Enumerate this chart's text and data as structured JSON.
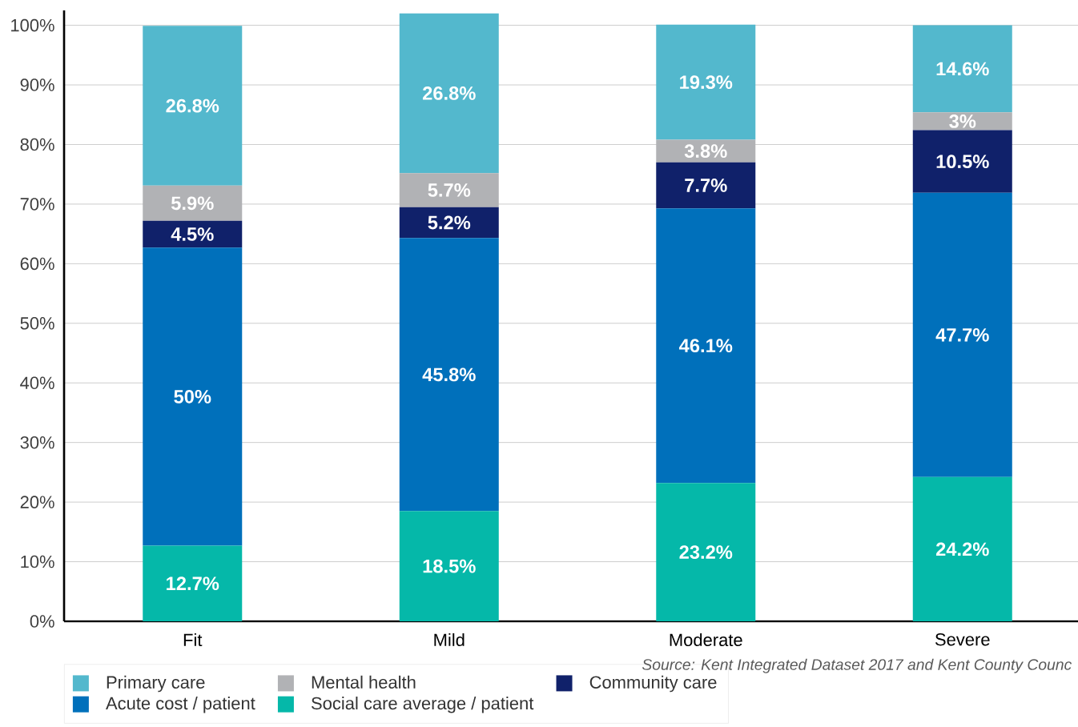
{
  "chart_data": {
    "type": "bar",
    "stacked": true,
    "categories": [
      "Fit",
      "Mild",
      "Moderate",
      "Severe"
    ],
    "series": [
      {
        "name": "Social care average / patient",
        "color": "#05b8a9",
        "values": [
          12.7,
          18.5,
          23.2,
          24.2
        ],
        "value_labels": [
          "12.7%",
          "18.5%",
          "23.2%",
          "24.2%"
        ]
      },
      {
        "name": "Acute cost / patient",
        "color": "#0070bb",
        "values": [
          50,
          45.8,
          46.1,
          47.7
        ],
        "value_labels": [
          "50%",
          "45.8%",
          "46.1%",
          "47.7%"
        ]
      },
      {
        "name": "Community care",
        "color": "#10216a",
        "values": [
          4.5,
          5.2,
          7.7,
          10.5
        ],
        "value_labels": [
          "4.5%",
          "5.2%",
          "7.7%",
          "10.5%"
        ]
      },
      {
        "name": "Mental health",
        "color": "#b1b2b5",
        "values": [
          5.9,
          5.7,
          3.8,
          3
        ],
        "value_labels": [
          "5.9%",
          "5.7%",
          "3.8%",
          "3%"
        ]
      },
      {
        "name": "Primary care",
        "color": "#53b8cd",
        "values": [
          26.8,
          26.8,
          19.3,
          14.6
        ],
        "value_labels": [
          "26.8%",
          "26.8%",
          "19.3%",
          "14.6%"
        ]
      }
    ],
    "ylim": [
      0,
      102.5
    ],
    "yticks": [
      {
        "value": 0,
        "label": "0%"
      },
      {
        "value": 10,
        "label": "10%"
      },
      {
        "value": 20,
        "label": "20%"
      },
      {
        "value": 30,
        "label": "30%"
      },
      {
        "value": 40,
        "label": "40%"
      },
      {
        "value": 50,
        "label": "50%"
      },
      {
        "value": 60,
        "label": "60%"
      },
      {
        "value": 70,
        "label": "70%"
      },
      {
        "value": 80,
        "label": "80%"
      },
      {
        "value": 90,
        "label": "90%"
      },
      {
        "value": 100,
        "label": "100%"
      }
    ],
    "grid": "y",
    "legend": "bottom left",
    "annotations": [
      "Source: Kent Integrated Dataset 2017 and Kent County Counc"
    ]
  }
}
